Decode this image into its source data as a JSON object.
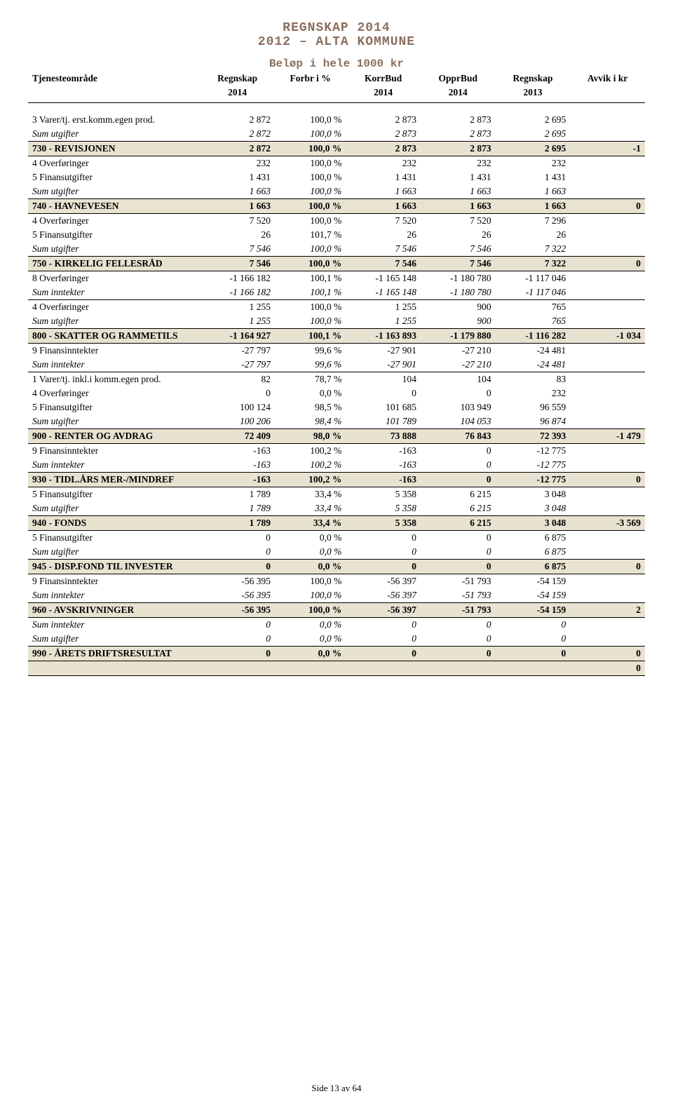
{
  "title_line1": "REGNSKAP 2014",
  "title_line2": "2012 – ALTA KOMMUNE",
  "subtitle": "Beløp i hele 1000 kr",
  "columns": {
    "c1a": "Tjenesteområde",
    "c1b": "",
    "c2a": "Regnskap",
    "c2b": "2014",
    "c3a": "Forbr i %",
    "c3b": "",
    "c4a": "KorrBud",
    "c4b": "2014",
    "c5a": "OpprBud",
    "c5b": "2014",
    "c6a": "Regnskap",
    "c6b": "2013",
    "c7a": "Avvik i kr",
    "c7b": ""
  },
  "rows": [
    {
      "type": "plain",
      "label": "3 Varer/tj. erst.komm.egen prod.",
      "v": [
        "2 872",
        "100,0 %",
        "2 873",
        "2 873",
        "2 695",
        ""
      ]
    },
    {
      "type": "sum",
      "label": "Sum utgifter",
      "v": [
        "2 872",
        "100,0 %",
        "2 873",
        "2 873",
        "2 695",
        ""
      ]
    },
    {
      "type": "section",
      "label": "730 - REVISJONEN",
      "v": [
        "2 872",
        "100,0 %",
        "2 873",
        "2 873",
        "2 695",
        "-1"
      ]
    },
    {
      "type": "plain",
      "label": "4 Overføringer",
      "v": [
        "232",
        "100,0 %",
        "232",
        "232",
        "232",
        ""
      ]
    },
    {
      "type": "plain",
      "label": "5 Finansutgifter",
      "v": [
        "1 431",
        "100,0 %",
        "1 431",
        "1 431",
        "1 431",
        ""
      ]
    },
    {
      "type": "sum",
      "label": "Sum utgifter",
      "v": [
        "1 663",
        "100,0 %",
        "1 663",
        "1 663",
        "1 663",
        ""
      ]
    },
    {
      "type": "section",
      "label": "740 - HAVNEVESEN",
      "v": [
        "1 663",
        "100,0 %",
        "1 663",
        "1 663",
        "1 663",
        "0"
      ]
    },
    {
      "type": "plain",
      "label": "4 Overføringer",
      "v": [
        "7 520",
        "100,0 %",
        "7 520",
        "7 520",
        "7 296",
        ""
      ]
    },
    {
      "type": "plain",
      "label": "5 Finansutgifter",
      "v": [
        "26",
        "101,7 %",
        "26",
        "26",
        "26",
        ""
      ]
    },
    {
      "type": "sum",
      "label": "Sum utgifter",
      "v": [
        "7 546",
        "100,0 %",
        "7 546",
        "7 546",
        "7 322",
        ""
      ]
    },
    {
      "type": "section",
      "label": "750 - KIRKELIG FELLESRÅD",
      "v": [
        "7 546",
        "100,0 %",
        "7 546",
        "7 546",
        "7 322",
        "0"
      ]
    },
    {
      "type": "plain",
      "label": "8 Overføringer",
      "v": [
        "-1 166 182",
        "100,1 %",
        "-1 165 148",
        "-1 180 780",
        "-1 117 046",
        ""
      ]
    },
    {
      "type": "sum",
      "label": "Sum inntekter",
      "v": [
        "-1 166 182",
        "100,1 %",
        "-1 165 148",
        "-1 180 780",
        "-1 117 046",
        ""
      ]
    },
    {
      "type": "plain",
      "label": "4 Overføringer",
      "v": [
        "1 255",
        "100,0 %",
        "1 255",
        "900",
        "765",
        ""
      ]
    },
    {
      "type": "sum",
      "label": "Sum utgifter",
      "v": [
        "1 255",
        "100,0 %",
        "1 255",
        "900",
        "765",
        ""
      ]
    },
    {
      "type": "section",
      "label": "800 - SKATTER OG RAMMETILS",
      "v": [
        "-1 164 927",
        "100,1 %",
        "-1 163 893",
        "-1 179 880",
        "-1 116 282",
        "-1 034"
      ]
    },
    {
      "type": "plain",
      "label": "9 Finansinntekter",
      "v": [
        "-27 797",
        "99,6 %",
        "-27 901",
        "-27 210",
        "-24 481",
        ""
      ]
    },
    {
      "type": "sum",
      "label": "Sum inntekter",
      "v": [
        "-27 797",
        "99,6 %",
        "-27 901",
        "-27 210",
        "-24 481",
        ""
      ]
    },
    {
      "type": "plain",
      "label": "1 Varer/tj. inkl.i komm.egen prod.",
      "v": [
        "82",
        "78,7 %",
        "104",
        "104",
        "83",
        ""
      ]
    },
    {
      "type": "plain",
      "label": "4 Overføringer",
      "v": [
        "0",
        "0,0 %",
        "0",
        "0",
        "232",
        ""
      ]
    },
    {
      "type": "plain",
      "label": "5 Finansutgifter",
      "v": [
        "100 124",
        "98,5 %",
        "101 685",
        "103 949",
        "96 559",
        ""
      ]
    },
    {
      "type": "sum",
      "label": "Sum utgifter",
      "v": [
        "100 206",
        "98,4 %",
        "101 789",
        "104 053",
        "96 874",
        ""
      ]
    },
    {
      "type": "section",
      "label": "900 - RENTER OG AVDRAG",
      "v": [
        "72 409",
        "98,0 %",
        "73 888",
        "76 843",
        "72 393",
        "-1 479"
      ]
    },
    {
      "type": "plain",
      "label": "9 Finansinntekter",
      "v": [
        "-163",
        "100,2 %",
        "-163",
        "0",
        "-12 775",
        ""
      ]
    },
    {
      "type": "sum",
      "label": "Sum inntekter",
      "v": [
        "-163",
        "100,2 %",
        "-163",
        "0",
        "-12 775",
        ""
      ]
    },
    {
      "type": "section",
      "label": "930 - TIDL.ÅRS MER-/MINDREF",
      "v": [
        "-163",
        "100,2 %",
        "-163",
        "0",
        "-12 775",
        "0"
      ]
    },
    {
      "type": "plain",
      "label": "5 Finansutgifter",
      "v": [
        "1 789",
        "33,4 %",
        "5 358",
        "6 215",
        "3 048",
        ""
      ]
    },
    {
      "type": "sum",
      "label": "Sum utgifter",
      "v": [
        "1 789",
        "33,4 %",
        "5 358",
        "6 215",
        "3 048",
        ""
      ]
    },
    {
      "type": "section",
      "label": "940 - FONDS",
      "v": [
        "1 789",
        "33,4 %",
        "5 358",
        "6 215",
        "3 048",
        "-3 569"
      ]
    },
    {
      "type": "plain",
      "label": "5 Finansutgifter",
      "v": [
        "0",
        "0,0 %",
        "0",
        "0",
        "6 875",
        ""
      ]
    },
    {
      "type": "sum",
      "label": "Sum utgifter",
      "v": [
        "0",
        "0,0 %",
        "0",
        "0",
        "6 875",
        ""
      ]
    },
    {
      "type": "section",
      "label": "945 - DISP.FOND TIL INVESTER",
      "v": [
        "0",
        "0,0 %",
        "0",
        "0",
        "6 875",
        "0"
      ]
    },
    {
      "type": "plain",
      "label": "9 Finansinntekter",
      "v": [
        "-56 395",
        "100,0 %",
        "-56 397",
        "-51 793",
        "-54 159",
        ""
      ]
    },
    {
      "type": "sum",
      "label": "Sum inntekter",
      "v": [
        "-56 395",
        "100,0 %",
        "-56 397",
        "-51 793",
        "-54 159",
        ""
      ]
    },
    {
      "type": "section",
      "label": "960 - AVSKRIVNINGER",
      "v": [
        "-56 395",
        "100,0 %",
        "-56 397",
        "-51 793",
        "-54 159",
        "2"
      ]
    },
    {
      "type": "sumtop",
      "label": "Sum inntekter",
      "v": [
        "0",
        "0,0 %",
        "0",
        "0",
        "0",
        ""
      ]
    },
    {
      "type": "sum",
      "label": "Sum utgifter",
      "v": [
        "0",
        "0,0 %",
        "0",
        "0",
        "0",
        ""
      ]
    },
    {
      "type": "section",
      "label": "990 - ÅRETS DRIFTSRESULTAT",
      "v": [
        "0",
        "0,0 %",
        "0",
        "0",
        "0",
        "0"
      ]
    },
    {
      "type": "grandtotal",
      "label": "",
      "v": [
        "",
        "",
        "",
        "",
        "",
        "0"
      ]
    }
  ],
  "footer": "Side 13 av 64",
  "colors": {
    "section_bg": "#e8e2d0",
    "title_color": "#8b6e5c",
    "border": "#000000"
  }
}
